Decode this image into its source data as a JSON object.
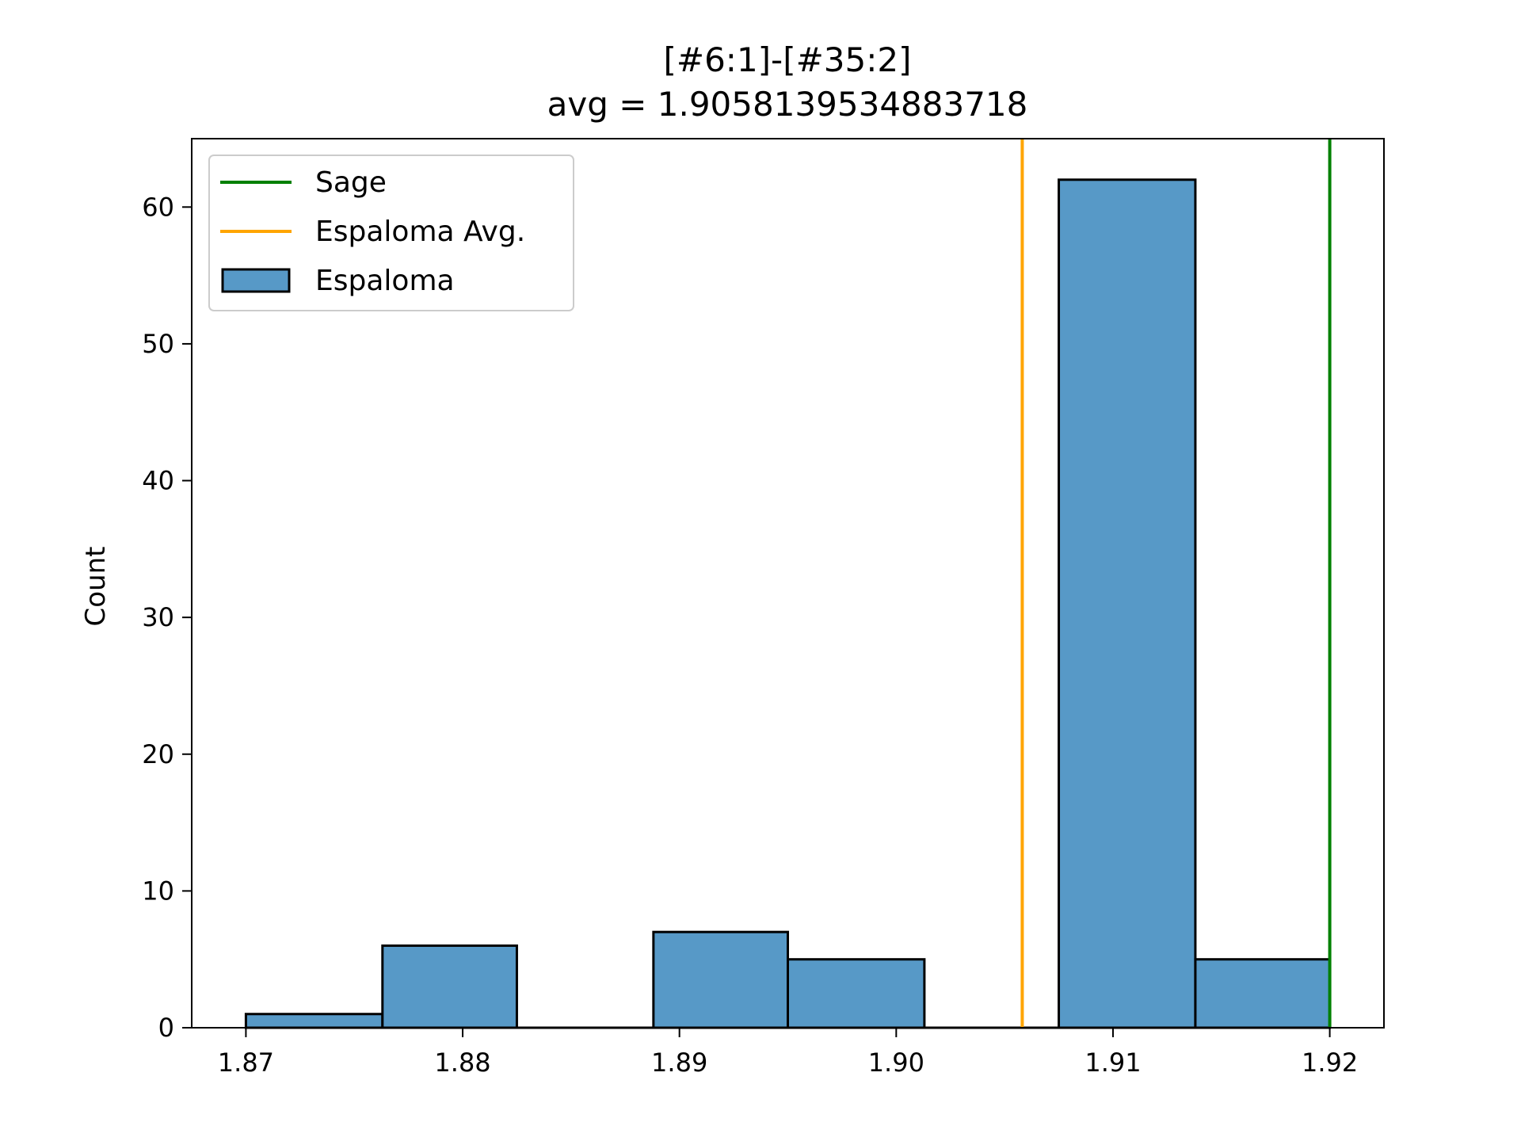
{
  "chart_data": {
    "type": "bar",
    "title": "[#6:1]-[#35:2]",
    "subtitle": "avg = 1.9058139534883718",
    "xlabel": "",
    "ylabel": "Count",
    "xlim": [
      1.8675,
      1.9225
    ],
    "ylim": [
      0,
      65
    ],
    "xticks": [
      "1.87",
      "1.88",
      "1.89",
      "1.90",
      "1.91",
      "1.92"
    ],
    "xtick_values": [
      1.87,
      1.88,
      1.89,
      1.9,
      1.91,
      1.92
    ],
    "yticks": [
      "0",
      "10",
      "20",
      "30",
      "40",
      "50",
      "60"
    ],
    "ytick_values": [
      0,
      10,
      20,
      30,
      40,
      50,
      60
    ],
    "grid": false,
    "legend_placement": "top-left",
    "histogram": {
      "name": "Espaloma",
      "color": "#5799c7",
      "edge_color": "#000000",
      "bin_edges": [
        1.87,
        1.8763,
        1.8825,
        1.8888,
        1.895,
        1.9013,
        1.9075,
        1.9138,
        1.92
      ],
      "counts": [
        1,
        6,
        0,
        7,
        5,
        0,
        62,
        5
      ]
    },
    "vlines": [
      {
        "name": "Sage",
        "x": 1.92,
        "color": "#008000"
      },
      {
        "name": "Espaloma Avg.",
        "x": 1.9058139534883718,
        "color": "#ffa500"
      }
    ],
    "legend": [
      {
        "label": "Sage",
        "kind": "line",
        "color": "#008000"
      },
      {
        "label": "Espaloma Avg.",
        "kind": "line",
        "color": "#ffa500"
      },
      {
        "label": "Espaloma",
        "kind": "patch",
        "color": "#5799c7"
      }
    ]
  }
}
